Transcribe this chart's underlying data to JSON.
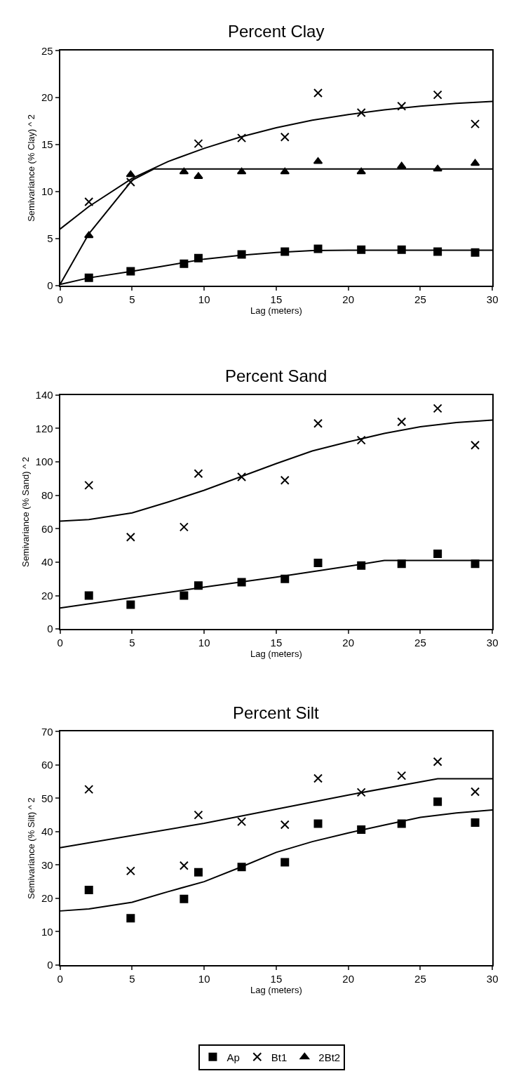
{
  "chart_data": [
    {
      "type": "scatter",
      "title": "Percent Clay",
      "xlabel": "Lag (meters)",
      "ylabel": "Semivariance (% Clay) ^ 2",
      "xlim": [
        0,
        30
      ],
      "xticks": [
        0,
        5,
        10,
        15,
        20,
        25,
        30
      ],
      "ylim": [
        0,
        25
      ],
      "yticks": [
        0,
        5,
        10,
        15,
        20,
        25
      ],
      "legend": "bottom",
      "series": [
        {
          "name": "Ap",
          "color": "#000000",
          "marker": "square",
          "x": [
            2,
            4.9,
            8.6,
            9.6,
            12.6,
            15.6,
            17.9,
            20.9,
            23.7,
            26.2,
            28.8
          ],
          "values": [
            0.8,
            1.5,
            2.3,
            2.9,
            3.3,
            3.6,
            3.9,
            3.8,
            3.8,
            3.6,
            3.5
          ]
        },
        {
          "name": "Bt1",
          "color": "#000000",
          "marker": "cross",
          "x": [
            2,
            4.9,
            9.6,
            12.6,
            15.6,
            17.9,
            20.9,
            23.7,
            26.2,
            28.8
          ],
          "values": [
            8.9,
            11.0,
            15.1,
            15.7,
            15.8,
            20.5,
            18.4,
            19.1,
            20.3,
            17.2
          ]
        },
        {
          "name": "2Bt2",
          "color": "#000000",
          "marker": "triangle",
          "x": [
            2,
            4.9,
            8.6,
            9.6,
            12.6,
            15.6,
            17.9,
            20.9,
            23.7,
            26.2,
            28.8
          ],
          "values": [
            5.3,
            11.8,
            12.1,
            11.6,
            12.1,
            12.1,
            13.2,
            12.1,
            12.7,
            12.4,
            13.0
          ]
        },
        {
          "type": "line",
          "color": "#000000",
          "marker": "none",
          "x": [
            0,
            2,
            5,
            7.5,
            10,
            12.5,
            15,
            17.5,
            20,
            22.5,
            25,
            27.5,
            30
          ],
          "values": [
            6.0,
            8.4,
            11.4,
            13.2,
            14.6,
            15.8,
            16.8,
            17.6,
            18.2,
            18.7,
            19.1,
            19.4,
            19.6
          ]
        },
        {
          "type": "line",
          "color": "#000000",
          "marker": "none",
          "x": [
            0,
            2,
            5,
            6.5,
            30
          ],
          "values": [
            0.1,
            5.5,
            11.2,
            12.4,
            12.4
          ]
        },
        {
          "type": "line",
          "color": "#000000",
          "marker": "none",
          "x": [
            0,
            2,
            5,
            7,
            10,
            12.5,
            15,
            17.5,
            20,
            30
          ],
          "values": [
            0.1,
            0.8,
            1.5,
            2.0,
            2.8,
            3.2,
            3.5,
            3.7,
            3.75,
            3.75
          ]
        }
      ]
    },
    {
      "type": "scatter",
      "title": "Percent Sand",
      "xlabel": "Lag (meters)",
      "ylabel": "Semivariance (% Sand) ^ 2",
      "xlim": [
        0,
        30
      ],
      "xticks": [
        0,
        5,
        10,
        15,
        20,
        25,
        30
      ],
      "ylim": [
        0,
        140
      ],
      "yticks": [
        0,
        20,
        40,
        60,
        80,
        100,
        120,
        140
      ],
      "series": [
        {
          "color": "#000000",
          "marker": "square",
          "x": [
            2,
            4.9,
            8.6,
            9.6,
            12.6,
            15.6,
            17.9,
            20.9,
            23.7,
            26.2,
            28.8
          ],
          "values": [
            20,
            14.5,
            20,
            26,
            28,
            30,
            39.5,
            38,
            39,
            45,
            39
          ]
        },
        {
          "color": "#000000",
          "marker": "cross",
          "x": [
            2,
            4.9,
            8.6,
            9.6,
            12.6,
            15.6,
            17.9,
            20.9,
            23.7,
            26.2,
            28.8
          ],
          "values": [
            86,
            55,
            61,
            93,
            91,
            89,
            123,
            113,
            124,
            132,
            110
          ]
        },
        {
          "type": "line",
          "color": "#000000",
          "marker": "none",
          "x": [
            0,
            2,
            5,
            7.5,
            10,
            12.5,
            15,
            17.5,
            20,
            22.5,
            25,
            27.5,
            30
          ],
          "values": [
            64.5,
            65.5,
            69.5,
            76,
            83,
            91,
            99,
            106.5,
            112,
            117,
            121,
            123.5,
            125
          ]
        },
        {
          "type": "line",
          "color": "#000000",
          "marker": "none",
          "x": [
            0,
            10,
            15,
            20,
            22.5,
            30
          ],
          "values": [
            12.5,
            25,
            31,
            37.5,
            41,
            41
          ]
        }
      ]
    },
    {
      "type": "scatter",
      "title": "Percent Silt",
      "xlabel": "Lag (meters)",
      "ylabel": "Semivariance (% Silt) ^ 2",
      "xlim": [
        0,
        30
      ],
      "xticks": [
        0,
        5,
        10,
        15,
        20,
        25,
        30
      ],
      "ylim": [
        0,
        70
      ],
      "yticks": [
        0,
        10,
        20,
        30,
        40,
        50,
        60,
        70
      ],
      "series": [
        {
          "color": "#000000",
          "marker": "square",
          "x": [
            2,
            4.9,
            8.6,
            9.6,
            12.6,
            15.6,
            17.9,
            20.9,
            23.7,
            26.2,
            28.8
          ],
          "values": [
            22.5,
            14,
            19.8,
            27.8,
            29.4,
            30.8,
            42.4,
            40.6,
            42.4,
            49,
            42.7
          ]
        },
        {
          "color": "#000000",
          "marker": "cross",
          "x": [
            2,
            4.9,
            8.6,
            9.6,
            12.6,
            15.6,
            17.9,
            20.9,
            23.7,
            26.2,
            28.8
          ],
          "values": [
            52.7,
            28.2,
            29.8,
            45,
            43,
            42.1,
            56,
            51.8,
            56.8,
            61,
            52
          ]
        },
        {
          "type": "line",
          "color": "#000000",
          "marker": "none",
          "x": [
            0,
            10,
            20,
            26.2,
            30
          ],
          "values": [
            35.2,
            42.5,
            51,
            55.9,
            55.9
          ]
        },
        {
          "type": "line",
          "color": "#000000",
          "marker": "none",
          "x": [
            0,
            2,
            5,
            7.5,
            10,
            12.5,
            15,
            17.5,
            20,
            22.5,
            25,
            27.5,
            30
          ],
          "values": [
            16.2,
            16.8,
            18.8,
            22,
            25,
            29.3,
            33.8,
            37,
            39.6,
            42,
            44.3,
            45.6,
            46.5
          ]
        }
      ]
    }
  ]
}
